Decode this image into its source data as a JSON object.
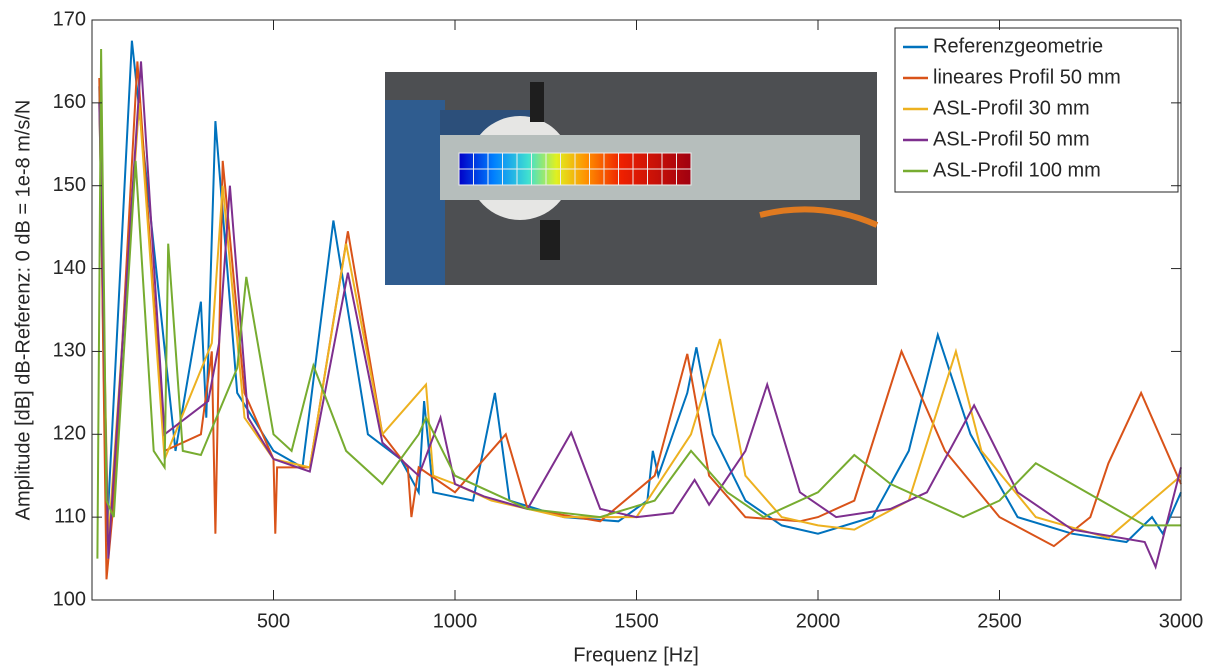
{
  "chart_data": {
    "type": "line",
    "xlabel": "Frequenz [Hz]",
    "ylabel": "Amplitude [dB] dB-Referenz: 0 dB = 1e-8 m/s/N",
    "xlim": [
      0,
      3000
    ],
    "xticks": [
      500,
      1000,
      1500,
      2000,
      2500,
      3000
    ],
    "ylim": [
      100,
      170
    ],
    "yticks": [
      100,
      110,
      120,
      130,
      140,
      150,
      160,
      170
    ],
    "legend": "upper right",
    "series": [
      {
        "name": "Referenzgeometrie",
        "color": "#0072bd",
        "x": [
          20,
          40,
          110,
          230,
          300,
          315,
          340,
          400,
          500,
          580,
          665,
          760,
          850,
          900,
          915,
          940,
          1050,
          1110,
          1150,
          1300,
          1450,
          1530,
          1545,
          1560,
          1640,
          1665,
          1710,
          1800,
          1900,
          2000,
          2150,
          2250,
          2330,
          2420,
          2550,
          2700,
          2850,
          2920,
          2950,
          3000
        ],
        "values": [
          162,
          107,
          167.5,
          118,
          136,
          122,
          157.8,
          125,
          118,
          116,
          145.8,
          120,
          117,
          113,
          124,
          113,
          112,
          125,
          112,
          110,
          109.5,
          112,
          118,
          115,
          125,
          130.5,
          120,
          112,
          109,
          108,
          110,
          118,
          132,
          120,
          110,
          108,
          107,
          110,
          108,
          113
        ]
      },
      {
        "name": "lineares Profil 50 mm",
        "color": "#d95319",
        "x": [
          20,
          40,
          60,
          125,
          200,
          300,
          330,
          340,
          360,
          420,
          500,
          505,
          510,
          600,
          705,
          800,
          870,
          880,
          900,
          1000,
          1140,
          1200,
          1400,
          1550,
          1640,
          1700,
          1800,
          1950,
          2000,
          2100,
          2230,
          2350,
          2500,
          2650,
          2750,
          2800,
          2890,
          3000
        ],
        "values": [
          163,
          102.5,
          112,
          165,
          118,
          120,
          130,
          108,
          153,
          125,
          117,
          108,
          116,
          116,
          144.5,
          120,
          116,
          110,
          116,
          113,
          120,
          111,
          109.5,
          115,
          129.7,
          115,
          110,
          109.5,
          110,
          112,
          130,
          118,
          110,
          106.5,
          110,
          116.5,
          125,
          114
        ]
      },
      {
        "name": "ASL-Profil 30 mm",
        "color": "#edb120",
        "x": [
          20,
          45,
          130,
          200,
          330,
          360,
          420,
          500,
          600,
          700,
          800,
          920,
          940,
          1000,
          1100,
          1300,
          1500,
          1650,
          1730,
          1800,
          1900,
          2000,
          2100,
          2250,
          2380,
          2450,
          2600,
          2800,
          3000
        ],
        "values": [
          160,
          107,
          160,
          117,
          131,
          150,
          122,
          117,
          116,
          143,
          120,
          126,
          115,
          114,
          112,
          110,
          110,
          120,
          131.5,
          115,
          110,
          109,
          108.5,
          112,
          130,
          118,
          110,
          107.5,
          115
        ]
      },
      {
        "name": "ASL-Profil 50 mm",
        "color": "#7e2f8e",
        "x": [
          20,
          45,
          135,
          200,
          320,
          350,
          380,
          430,
          500,
          600,
          705,
          800,
          900,
          960,
          1000,
          1080,
          1200,
          1320,
          1400,
          1500,
          1600,
          1660,
          1700,
          1800,
          1860,
          1950,
          2050,
          2200,
          2300,
          2430,
          2550,
          2700,
          2900,
          2930,
          3000
        ],
        "values": [
          160,
          105,
          165,
          120,
          124,
          131,
          150,
          122,
          117,
          115.5,
          139.5,
          119,
          115,
          122,
          114,
          112.5,
          111,
          120.2,
          111,
          110,
          110.5,
          114.5,
          111.5,
          118,
          126,
          113,
          110,
          111,
          113,
          123.5,
          113,
          108.5,
          107,
          104,
          116
        ]
      },
      {
        "name": "ASL-Profil 100 mm",
        "color": "#77ac30",
        "x": [
          15,
          25,
          40,
          60,
          120,
          170,
          200,
          210,
          250,
          300,
          400,
          425,
          500,
          550,
          610,
          700,
          800,
          900,
          920,
          1000,
          1200,
          1400,
          1550,
          1650,
          1750,
          1850,
          2000,
          2100,
          2200,
          2400,
          2500,
          2600,
          2700,
          2900,
          3000
        ],
        "values": [
          105,
          166.5,
          112,
          110,
          153,
          118,
          116,
          143,
          118,
          117.5,
          128,
          139,
          120,
          118,
          128.3,
          118,
          114,
          120,
          122,
          115,
          111,
          110,
          112,
          118,
          113,
          110,
          113,
          117.5,
          114,
          110,
          112,
          116.5,
          114,
          109,
          109
        ]
      }
    ]
  }
}
